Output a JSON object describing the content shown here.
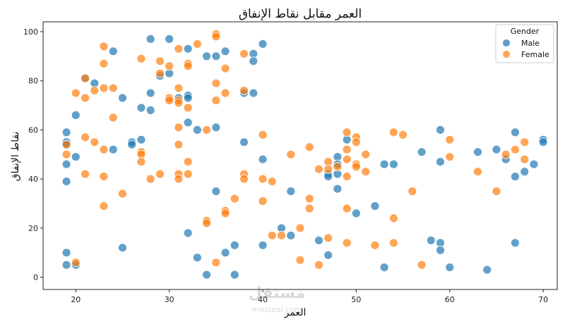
{
  "chart_data": {
    "type": "scatter",
    "title": "العمر مقابل نقاط الإنفاق",
    "xlabel": "العمر",
    "ylabel": "نقاط الإنفاق",
    "xlim": [
      16.5,
      71.5
    ],
    "ylim": [
      -5,
      104
    ],
    "xticks": [
      20,
      30,
      40,
      50,
      60,
      70
    ],
    "yticks": [
      0,
      20,
      40,
      60,
      80,
      100
    ],
    "grid": false,
    "legend": {
      "title": "Gender",
      "placement": "top-right"
    },
    "series": [
      {
        "name": "Male",
        "color": "#1f77b4",
        "points": [
          [
            19,
            59
          ],
          [
            19,
            55
          ],
          [
            19,
            54
          ],
          [
            19,
            46
          ],
          [
            19,
            39
          ],
          [
            19,
            10
          ],
          [
            19,
            5
          ],
          [
            20,
            66
          ],
          [
            20,
            49
          ],
          [
            20,
            5
          ],
          [
            21,
            81
          ],
          [
            22,
            79
          ],
          [
            24,
            92
          ],
          [
            24,
            52
          ],
          [
            25,
            73
          ],
          [
            25,
            12
          ],
          [
            26,
            55
          ],
          [
            26,
            54
          ],
          [
            27,
            69
          ],
          [
            27,
            56
          ],
          [
            28,
            97
          ],
          [
            28,
            75
          ],
          [
            28,
            68
          ],
          [
            29,
            82
          ],
          [
            30,
            97
          ],
          [
            30,
            83
          ],
          [
            31,
            73
          ],
          [
            32,
            93
          ],
          [
            32,
            74
          ],
          [
            32,
            73
          ],
          [
            32,
            63
          ],
          [
            32,
            18
          ],
          [
            33,
            60
          ],
          [
            33,
            8
          ],
          [
            34,
            90
          ],
          [
            34,
            1
          ],
          [
            35,
            90
          ],
          [
            35,
            61
          ],
          [
            35,
            35
          ],
          [
            36,
            92
          ],
          [
            36,
            10
          ],
          [
            37,
            13
          ],
          [
            37,
            1
          ],
          [
            38,
            75
          ],
          [
            38,
            55
          ],
          [
            39,
            91
          ],
          [
            39,
            88
          ],
          [
            39,
            75
          ],
          [
            40,
            95
          ],
          [
            40,
            48
          ],
          [
            40,
            13
          ],
          [
            42,
            20
          ],
          [
            43,
            35
          ],
          [
            43,
            17
          ],
          [
            46,
            15
          ],
          [
            47,
            42
          ],
          [
            47,
            41
          ],
          [
            47,
            9
          ],
          [
            48,
            49
          ],
          [
            48,
            46
          ],
          [
            48,
            42
          ],
          [
            48,
            36
          ],
          [
            49,
            56
          ],
          [
            50,
            26
          ],
          [
            52,
            29
          ],
          [
            53,
            46
          ],
          [
            53,
            4
          ],
          [
            54,
            46
          ],
          [
            57,
            51
          ],
          [
            58,
            15
          ],
          [
            59,
            60
          ],
          [
            59,
            47
          ],
          [
            59,
            14
          ],
          [
            59,
            11
          ],
          [
            60,
            4
          ],
          [
            63,
            51
          ],
          [
            64,
            3
          ],
          [
            65,
            52
          ],
          [
            66,
            48
          ],
          [
            67,
            59
          ],
          [
            67,
            41
          ],
          [
            67,
            14
          ],
          [
            68,
            43
          ],
          [
            69,
            46
          ],
          [
            70,
            56
          ],
          [
            70,
            55
          ]
        ]
      },
      {
        "name": "Female",
        "color": "#ff7f0e",
        "points": [
          [
            19,
            54
          ],
          [
            19,
            50
          ],
          [
            20,
            75
          ],
          [
            20,
            6
          ],
          [
            21,
            81
          ],
          [
            21,
            73
          ],
          [
            21,
            57
          ],
          [
            21,
            42
          ],
          [
            22,
            76
          ],
          [
            22,
            55
          ],
          [
            23,
            94
          ],
          [
            23,
            87
          ],
          [
            23,
            77
          ],
          [
            23,
            52
          ],
          [
            23,
            41
          ],
          [
            23,
            29
          ],
          [
            24,
            77
          ],
          [
            24,
            65
          ],
          [
            25,
            34
          ],
          [
            27,
            89
          ],
          [
            27,
            51
          ],
          [
            27,
            50
          ],
          [
            27,
            47
          ],
          [
            28,
            40
          ],
          [
            29,
            88
          ],
          [
            29,
            83
          ],
          [
            29,
            42
          ],
          [
            30,
            86
          ],
          [
            30,
            73
          ],
          [
            30,
            72
          ],
          [
            31,
            93
          ],
          [
            31,
            77
          ],
          [
            31,
            72
          ],
          [
            31,
            71
          ],
          [
            31,
            61
          ],
          [
            31,
            54
          ],
          [
            31,
            42
          ],
          [
            31,
            40
          ],
          [
            32,
            87
          ],
          [
            32,
            86
          ],
          [
            32,
            69
          ],
          [
            32,
            47
          ],
          [
            32,
            42
          ],
          [
            33,
            95
          ],
          [
            34,
            60
          ],
          [
            34,
            23
          ],
          [
            34,
            22
          ],
          [
            35,
            99
          ],
          [
            35,
            98
          ],
          [
            35,
            79
          ],
          [
            35,
            72
          ],
          [
            35,
            6
          ],
          [
            36,
            85
          ],
          [
            36,
            75
          ],
          [
            36,
            27
          ],
          [
            36,
            26
          ],
          [
            37,
            32
          ],
          [
            38,
            91
          ],
          [
            38,
            76
          ],
          [
            38,
            42
          ],
          [
            38,
            40
          ],
          [
            40,
            58
          ],
          [
            40,
            40
          ],
          [
            40,
            31
          ],
          [
            41,
            39
          ],
          [
            41,
            17
          ],
          [
            42,
            17
          ],
          [
            43,
            50
          ],
          [
            44,
            20
          ],
          [
            44,
            7
          ],
          [
            45,
            53
          ],
          [
            45,
            32
          ],
          [
            45,
            28
          ],
          [
            46,
            44
          ],
          [
            46,
            5
          ],
          [
            47,
            47
          ],
          [
            47,
            44
          ],
          [
            47,
            16
          ],
          [
            48,
            45
          ],
          [
            49,
            59
          ],
          [
            49,
            52
          ],
          [
            49,
            48
          ],
          [
            49,
            41
          ],
          [
            49,
            28
          ],
          [
            49,
            14
          ],
          [
            50,
            57
          ],
          [
            50,
            55
          ],
          [
            50,
            46
          ],
          [
            50,
            45
          ],
          [
            51,
            50
          ],
          [
            51,
            43
          ],
          [
            52,
            13
          ],
          [
            54,
            59
          ],
          [
            54,
            24
          ],
          [
            54,
            14
          ],
          [
            55,
            58
          ],
          [
            56,
            35
          ],
          [
            57,
            5
          ],
          [
            60,
            56
          ],
          [
            60,
            49
          ],
          [
            63,
            43
          ],
          [
            65,
            35
          ],
          [
            66,
            50
          ],
          [
            67,
            52
          ],
          [
            68,
            55
          ],
          [
            68,
            48
          ]
        ]
      }
    ]
  },
  "watermark": {
    "main": "مستقل",
    "sub": "mostaql.com"
  }
}
